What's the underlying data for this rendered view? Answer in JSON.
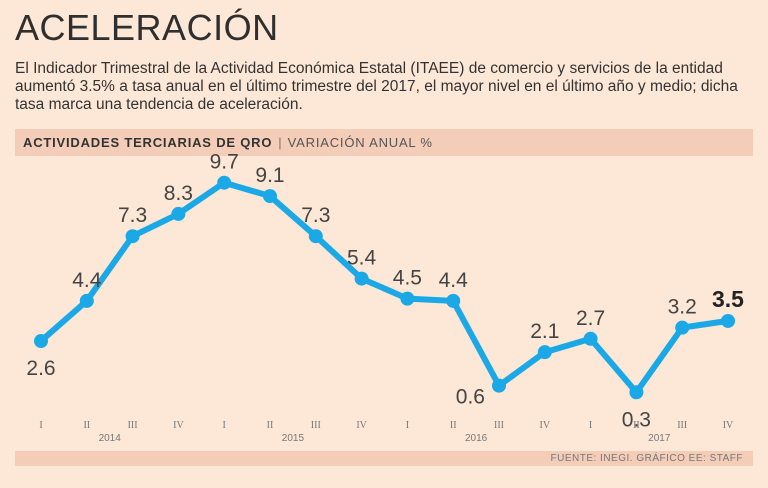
{
  "header": {
    "title": "ACELERACIÓN",
    "subtitle": "El Indicador Trimestral de la Actividad Económica Estatal (ITAEE) de comercio y servicios de la entidad aumentó 3.5% a tasa anual en el último trimestre del 2017, el mayor nivel en el último año y medio; dicha tasa marca una tendencia de aceleración."
  },
  "chart_header": {
    "title": "ACTIVIDADES TERCIARIAS DE QRO",
    "separator": "|",
    "subtitle": "VARIACIÓN ANUAL %"
  },
  "footer": {
    "source": "FUENTE: INEGI. GRÁFICO EE: STAFF"
  },
  "colors": {
    "line": "#1aa9e6",
    "background": "#fde7d6",
    "band": "#f3cdb8"
  },
  "chart_data": {
    "type": "line",
    "title": "ACTIVIDADES TERCIARIAS DE QRO",
    "ylabel": "VARIACIÓN ANUAL %",
    "ylim": [
      0,
      10
    ],
    "quarters": [
      "I",
      "II",
      "III",
      "IV",
      "I",
      "II",
      "III",
      "IV",
      "I",
      "II",
      "III",
      "IV",
      "I",
      "II",
      "III",
      "IV"
    ],
    "years": [
      "2014",
      "2015",
      "2016",
      "2017"
    ],
    "values": [
      2.6,
      4.4,
      7.3,
      8.3,
      9.7,
      9.1,
      7.3,
      5.4,
      4.5,
      4.4,
      0.6,
      2.1,
      2.7,
      0.3,
      3.2,
      3.5
    ],
    "labels": [
      "2.6",
      "4.4",
      "7.3",
      "8.3",
      "9.7",
      "9.1",
      "7.3",
      "5.4",
      "4.5",
      "4.4",
      "0.6",
      "2.1",
      "2.7",
      "0.3",
      "3.2",
      "3.5"
    ],
    "label_position": [
      "below",
      "above",
      "above",
      "above",
      "above",
      "above",
      "above",
      "above",
      "above",
      "above",
      "left",
      "above",
      "above",
      "below",
      "above",
      "above"
    ],
    "highlight_last": true
  }
}
